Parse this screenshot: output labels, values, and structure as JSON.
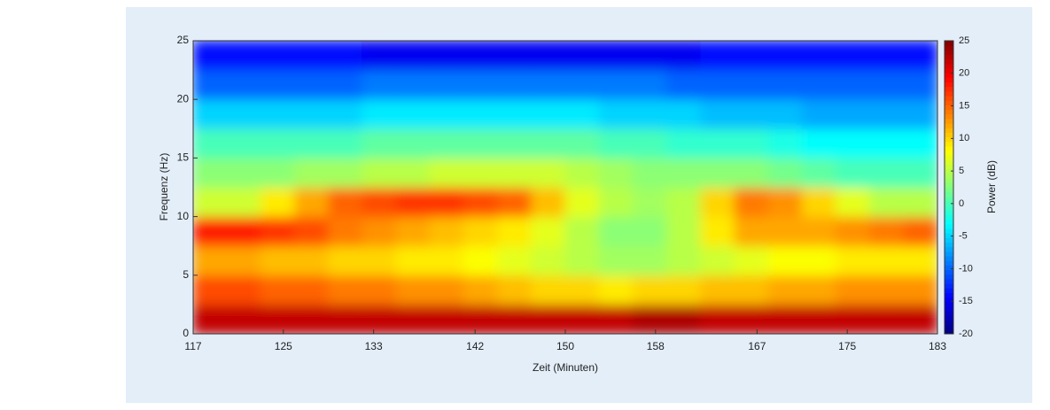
{
  "chart_data": {
    "type": "heatmap",
    "xlabel": "Zeit (Minuten)",
    "ylabel": "Frequenz (Hz)",
    "colorbar_label": "Power (dB)",
    "colormap": "jet",
    "xbins": [
      117,
      120,
      123,
      126,
      129,
      132,
      135,
      138,
      141,
      144,
      147,
      150,
      153,
      156,
      159,
      162,
      165,
      168,
      171,
      174,
      177,
      180,
      183
    ],
    "ybins": [
      0,
      2.5,
      5,
      7.5,
      10,
      12.5,
      15,
      17.5,
      20,
      22.5,
      25
    ],
    "values": [
      [
        22,
        22,
        22,
        22,
        22,
        22,
        22,
        22,
        22,
        22,
        22,
        22,
        22,
        23,
        23,
        22,
        22,
        22,
        22,
        22,
        22,
        22
      ],
      [
        16,
        16,
        15,
        15,
        14,
        14,
        13,
        13,
        12,
        11,
        10,
        10,
        9,
        10,
        10,
        11,
        11,
        12,
        12,
        13,
        13,
        13
      ],
      [
        12,
        12,
        11,
        11,
        10,
        10,
        9,
        9,
        8,
        7,
        6,
        5,
        4,
        4,
        5,
        6,
        7,
        8,
        8,
        9,
        9,
        9
      ],
      [
        18,
        18,
        17,
        16,
        14,
        13,
        12,
        11,
        10,
        9,
        7,
        5,
        3,
        3,
        5,
        9,
        12,
        12,
        12,
        13,
        14,
        15
      ],
      [
        6,
        6,
        9,
        12,
        15,
        16,
        17,
        17,
        16,
        15,
        11,
        7,
        5,
        4,
        5,
        10,
        14,
        13,
        10,
        7,
        5,
        5
      ],
      [
        3,
        3,
        3,
        4,
        4,
        5,
        5,
        6,
        6,
        6,
        6,
        5,
        4,
        3,
        3,
        3,
        3,
        2,
        1,
        0,
        0,
        0
      ],
      [
        0,
        0,
        0,
        0,
        0,
        1,
        1,
        1,
        1,
        1,
        1,
        1,
        0,
        0,
        -1,
        -1,
        -1,
        -2,
        -3,
        -3,
        -3,
        -3
      ],
      [
        -5,
        -5,
        -5,
        -5,
        -5,
        -4,
        -4,
        -4,
        -4,
        -4,
        -4,
        -4,
        -5,
        -5,
        -5,
        -6,
        -6,
        -6,
        -7,
        -7,
        -7,
        -7
      ],
      [
        -10,
        -10,
        -10,
        -10,
        -10,
        -9,
        -9,
        -9,
        -9,
        -9,
        -9,
        -9,
        -9,
        -9,
        -10,
        -10,
        -10,
        -10,
        -10,
        -10,
        -10,
        -10
      ],
      [
        -14,
        -14,
        -14,
        -14,
        -14,
        -15,
        -15,
        -15,
        -15,
        -15,
        -15,
        -15,
        -15,
        -15,
        -15,
        -14,
        -14,
        -14,
        -14,
        -14,
        -14,
        -14
      ]
    ],
    "xlim": [
      117,
      183
    ],
    "xticks": [
      117,
      125,
      133,
      142,
      150,
      158,
      167,
      175,
      183
    ],
    "ylim": [
      0,
      25
    ],
    "yticks": [
      0,
      5,
      10,
      15,
      20,
      25
    ],
    "clim": [
      -20,
      25
    ],
    "cticks": [
      -20,
      -15,
      -10,
      -5,
      0,
      5,
      10,
      15,
      20,
      25
    ]
  }
}
